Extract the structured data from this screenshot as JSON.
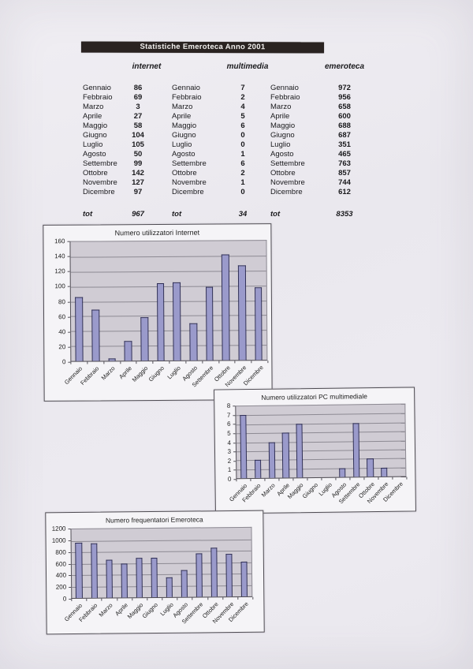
{
  "page": {
    "title": "Statistiche Emeroteca Anno 2001"
  },
  "table": {
    "months": [
      "Gennaio",
      "Febbraio",
      "Marzo",
      "Aprile",
      "Maggio",
      "Giugno",
      "Luglio",
      "Agosto",
      "Settembre",
      "Ottobre",
      "Novembre",
      "Dicembre"
    ],
    "columns": [
      {
        "header": "internet",
        "values": [
          86,
          69,
          3,
          27,
          58,
          104,
          105,
          50,
          99,
          142,
          127,
          97
        ],
        "total_label": "tot",
        "total": 967
      },
      {
        "header": "multimedia",
        "values": [
          7,
          2,
          4,
          5,
          6,
          0,
          0,
          1,
          6,
          2,
          1,
          0
        ],
        "total_label": "tot",
        "total": 34
      },
      {
        "header": "emeroteca",
        "values": [
          972,
          956,
          658,
          600,
          688,
          687,
          351,
          465,
          763,
          857,
          744,
          612
        ],
        "total_label": "tot",
        "total": 8353
      }
    ]
  },
  "chart_data": [
    {
      "type": "bar",
      "title": "Numero utilizzatori  Internet",
      "categories": [
        "Gennaio",
        "Febbraio",
        "Marzo",
        "Aprile",
        "Maggio",
        "Giugno",
        "Luglio",
        "Agosto",
        "Settembre",
        "Ottobre",
        "Novembre",
        "Dicembre"
      ],
      "values": [
        86,
        69,
        3,
        27,
        58,
        104,
        105,
        50,
        99,
        142,
        127,
        97
      ],
      "xlabel": "",
      "ylabel": "",
      "ylim": [
        0,
        160
      ],
      "ytick_step": 20,
      "grid": true,
      "legend": false,
      "bar_color": "#9a9acb",
      "plot_bg": "#d0ccd4"
    },
    {
      "type": "bar",
      "title": "Numero utilizzatori PC multimediale",
      "categories": [
        "Gennaio",
        "Febbraio",
        "Marzo",
        "Aprile",
        "Maggio",
        "Giugno",
        "Luglio",
        "Agosto",
        "Settembre",
        "Ottobre",
        "Novembre",
        "Dicembre"
      ],
      "values": [
        7,
        2,
        4,
        5,
        6,
        0,
        0,
        1,
        6,
        2,
        1,
        0
      ],
      "xlabel": "",
      "ylabel": "",
      "ylim": [
        0,
        8
      ],
      "ytick_step": 1,
      "grid": true,
      "legend": false,
      "bar_color": "#9a9acb",
      "plot_bg": "#d0ccd4"
    },
    {
      "type": "bar",
      "title": "Numero frequentatori Emeroteca",
      "categories": [
        "Gennaio",
        "Febbraio",
        "Marzo",
        "Aprile",
        "Maggio",
        "Giugno",
        "Luglio",
        "Agosto",
        "Settembre",
        "Ottobre",
        "Novembre",
        "Dicembre"
      ],
      "values": [
        972,
        956,
        658,
        600,
        688,
        687,
        351,
        465,
        763,
        857,
        744,
        612
      ],
      "xlabel": "",
      "ylabel": "",
      "ylim": [
        0,
        1200
      ],
      "ytick_step": 200,
      "grid": true,
      "legend": false,
      "bar_color": "#9a9acb",
      "plot_bg": "#d0ccd4"
    }
  ],
  "colors": {
    "paper": "#edebf1",
    "title_bar_bg": "#2a2321",
    "title_bar_text": "#f3f1ef",
    "bar_fill": "#9a9acb",
    "bar_border": "#2e2e56",
    "plot_bg": "#d0ccd4",
    "gridline": "#8d8a93"
  }
}
